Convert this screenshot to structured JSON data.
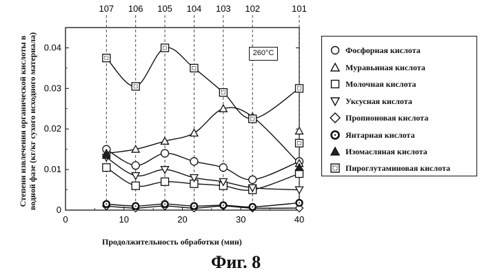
{
  "figure": {
    "caption": "Фиг. 8",
    "temperature_label": "260°C"
  },
  "chart_data": {
    "type": "line",
    "xlabel": "Продолжительность обработки (мин)",
    "ylabel_lines": [
      "Степени извлечения органической кислоты в",
      "водной фазе (кг/кг сухого исходного материала)"
    ],
    "xlim": [
      0,
      40
    ],
    "ylim": [
      0,
      0.045
    ],
    "x_ticks": [
      "0",
      "10",
      "20",
      "30",
      "40"
    ],
    "y_ticks": [
      "0",
      "0.01",
      "0.02",
      "0.03",
      "0.04"
    ],
    "x": [
      7,
      12,
      17,
      22,
      27,
      32,
      40
    ],
    "sample_labels": [
      "107",
      "106",
      "105",
      "104",
      "103",
      "102",
      "101"
    ],
    "legend_placement": "right",
    "series": [
      {
        "name": "Фосфорная кислота",
        "marker": "circle-open",
        "values": [
          0.015,
          0.011,
          0.014,
          0.012,
          0.0105,
          0.0075,
          0.012
        ]
      },
      {
        "name": "Муравьиная кислота",
        "marker": "triangle-up-open",
        "values": [
          0.014,
          0.015,
          0.017,
          0.019,
          0.025,
          0.023,
          0.0115
        ]
      },
      {
        "name": "Молочная кислота",
        "marker": "square-open",
        "values": [
          0.0105,
          0.006,
          0.007,
          0.0065,
          0.006,
          0.005,
          0.009
        ]
      },
      {
        "name": "Уксусная кислота",
        "marker": "triangle-down-open",
        "values": [
          0.013,
          0.0085,
          0.01,
          0.008,
          0.007,
          0.0055,
          0.005
        ]
      },
      {
        "name": "Пропионовая кислота",
        "marker": "diamond-open",
        "values": [
          0.001,
          0.0005,
          0.001,
          0.0005,
          0.001,
          0.0005,
          0.0005
        ]
      },
      {
        "name": "Янтарная кислота",
        "marker": "circle-ring",
        "values": [
          0.0015,
          0.001,
          0.0015,
          0.001,
          0.0012,
          0.0008,
          0.0018
        ]
      },
      {
        "name": "Изомасляная кислота",
        "marker": "triangle-up-filled",
        "values": [
          0.0135,
          null,
          null,
          null,
          null,
          null,
          0.0105
        ]
      },
      {
        "name": "Пироглутаминовая кислота",
        "marker": "square-dotted",
        "values": [
          0.0375,
          0.0305,
          0.04,
          0.035,
          0.029,
          0.0225,
          0.03
        ]
      }
    ],
    "extra_points": [
      {
        "series": "Муравьиная кислота",
        "x": 40,
        "y": 0.0195
      },
      {
        "series": "Пироглутаминовая кислота",
        "x": 40,
        "y": 0.0165
      }
    ]
  },
  "legend": {
    "items": [
      "Фосфорная кислота",
      "Муравьиная кислота",
      "Молочная кислота",
      "Уксусная кислота",
      "Пропионовая кислота",
      "Янтарная кислота",
      "Изомасляная кислота",
      "Пироглутаминовая кислота"
    ]
  }
}
